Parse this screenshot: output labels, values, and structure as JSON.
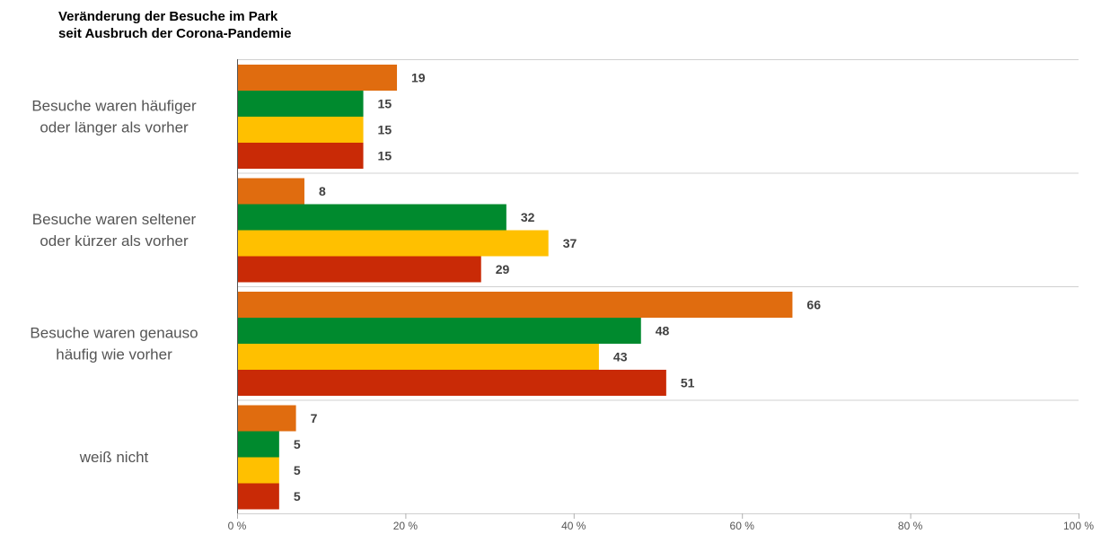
{
  "chart_data": {
    "type": "bar",
    "orientation": "horizontal",
    "title": "Veränderung der Besuche im Park",
    "subtitle": "seit Ausbruch der Corona-Pandemie",
    "xlabel": "",
    "ylabel": "",
    "xlim": [
      0,
      100
    ],
    "x_ticks": [
      "0 %",
      "20 %",
      "40 %",
      "60 %",
      "80 %",
      "100 %"
    ],
    "grid": true,
    "legend": "none",
    "categories": [
      {
        "lines": [
          "Besuche waren häufiger",
          "oder länger als vorher"
        ]
      },
      {
        "lines": [
          "Besuche waren seltener",
          "oder kürzer als vorher"
        ]
      },
      {
        "lines": [
          "Besuche waren genauso",
          "häufig wie vorher"
        ]
      },
      {
        "lines": [
          "weiß nicht"
        ]
      }
    ],
    "series": [
      {
        "color": "#e06c0f",
        "values": [
          19,
          8,
          66,
          7
        ]
      },
      {
        "color": "#008a2e",
        "values": [
          15,
          32,
          48,
          5
        ]
      },
      {
        "color": "#ffc000",
        "values": [
          15,
          37,
          43,
          5
        ]
      },
      {
        "color": "#c92a06",
        "values": [
          15,
          29,
          51,
          5
        ]
      }
    ],
    "value_labels": [
      [
        "19",
        "8",
        "66",
        "7"
      ],
      [
        "15",
        "32",
        "48",
        "5"
      ],
      [
        "15",
        "37",
        "43",
        "5"
      ],
      [
        "15",
        "29",
        "51",
        "5"
      ]
    ]
  }
}
